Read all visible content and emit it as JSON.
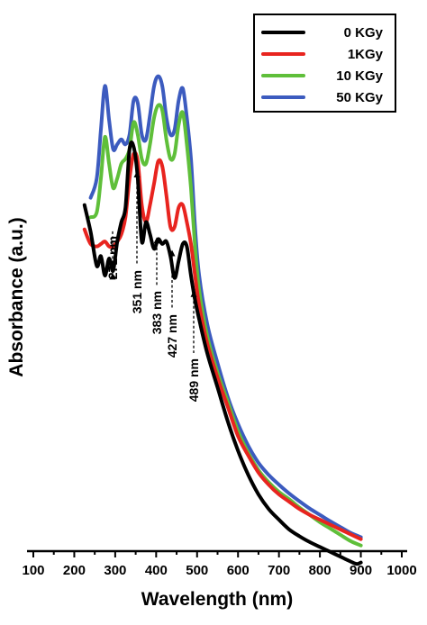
{
  "chart_data": {
    "type": "line",
    "xlabel": "Wavelength (nm)",
    "ylabel": "Absorbance (a.u.)",
    "xlim": [
      100,
      1000
    ],
    "ylim": [
      0,
      1.0
    ],
    "x_ticks": [
      100,
      200,
      300,
      400,
      500,
      600,
      700,
      800,
      900,
      1000
    ],
    "y_ticks_shown": false,
    "legend_position": "top-right",
    "series": [
      {
        "name": "0 KGy",
        "color": "#000000",
        "x": [
          225,
          240,
          255,
          265,
          275,
          285,
          295,
          305,
          315,
          325,
          335,
          345,
          355,
          365,
          375,
          385,
          395,
          405,
          415,
          425,
          435,
          445,
          455,
          465,
          475,
          485,
          495,
          505,
          525,
          550,
          575,
          600,
          625,
          650,
          675,
          700,
          725,
          750,
          775,
          800,
          825,
          850,
          875,
          890,
          900
        ],
        "y": [
          0.745,
          0.69,
          0.62,
          0.64,
          0.6,
          0.635,
          0.61,
          0.67,
          0.71,
          0.74,
          0.86,
          0.865,
          0.8,
          0.67,
          0.71,
          0.685,
          0.655,
          0.675,
          0.665,
          0.67,
          0.64,
          0.595,
          0.63,
          0.665,
          0.66,
          0.6,
          0.55,
          0.51,
          0.44,
          0.37,
          0.3,
          0.24,
          0.19,
          0.15,
          0.12,
          0.098,
          0.078,
          0.064,
          0.052,
          0.042,
          0.032,
          0.022,
          0.012,
          0.007,
          0.01
        ]
      },
      {
        "name": "1KGy",
        "color": "#e8241f",
        "x": [
          225,
          240,
          255,
          265,
          275,
          285,
          295,
          305,
          315,
          325,
          335,
          345,
          355,
          365,
          375,
          385,
          395,
          405,
          415,
          425,
          435,
          445,
          455,
          465,
          475,
          485,
          495,
          505,
          525,
          550,
          575,
          600,
          625,
          650,
          675,
          700,
          725,
          750,
          775,
          800,
          825,
          850,
          875,
          900
        ],
        "y": [
          0.695,
          0.665,
          0.66,
          0.665,
          0.67,
          0.66,
          0.66,
          0.67,
          0.685,
          0.72,
          0.8,
          0.85,
          0.835,
          0.745,
          0.71,
          0.745,
          0.79,
          0.835,
          0.825,
          0.765,
          0.7,
          0.7,
          0.74,
          0.745,
          0.71,
          0.665,
          0.6,
          0.54,
          0.46,
          0.39,
          0.33,
          0.27,
          0.23,
          0.195,
          0.17,
          0.15,
          0.135,
          0.12,
          0.108,
          0.098,
          0.088,
          0.078,
          0.068,
          0.058
        ]
      },
      {
        "name": "10 KGy",
        "color": "#5fbf3a",
        "x": [
          240,
          255,
          265,
          275,
          285,
          295,
          305,
          315,
          325,
          335,
          345,
          355,
          365,
          375,
          385,
          395,
          405,
          415,
          425,
          435,
          445,
          455,
          465,
          475,
          485,
          495,
          505,
          525,
          550,
          575,
          600,
          625,
          650,
          675,
          700,
          725,
          750,
          775,
          800,
          825,
          850,
          875,
          900
        ],
        "y": [
          0.72,
          0.73,
          0.8,
          0.885,
          0.83,
          0.78,
          0.8,
          0.83,
          0.84,
          0.86,
          0.915,
          0.89,
          0.84,
          0.83,
          0.87,
          0.925,
          0.95,
          0.94,
          0.88,
          0.84,
          0.85,
          0.91,
          0.935,
          0.87,
          0.78,
          0.66,
          0.57,
          0.475,
          0.4,
          0.34,
          0.28,
          0.235,
          0.2,
          0.175,
          0.155,
          0.14,
          0.123,
          0.108,
          0.093,
          0.08,
          0.067,
          0.054,
          0.045
        ]
      },
      {
        "name": "50 KGy",
        "color": "#3c5bbf",
        "x": [
          240,
          255,
          265,
          275,
          285,
          295,
          305,
          315,
          325,
          335,
          345,
          355,
          365,
          375,
          385,
          395,
          405,
          415,
          425,
          435,
          445,
          455,
          465,
          475,
          485,
          495,
          505,
          525,
          550,
          575,
          600,
          625,
          650,
          675,
          700,
          725,
          750,
          775,
          800,
          825,
          850,
          875,
          900
        ],
        "y": [
          0.76,
          0.8,
          0.9,
          0.99,
          0.92,
          0.86,
          0.87,
          0.88,
          0.87,
          0.89,
          0.96,
          0.955,
          0.89,
          0.88,
          0.93,
          0.99,
          1.01,
          0.99,
          0.925,
          0.89,
          0.9,
          0.96,
          0.985,
          0.925,
          0.84,
          0.7,
          0.6,
          0.5,
          0.42,
          0.35,
          0.295,
          0.25,
          0.215,
          0.19,
          0.17,
          0.152,
          0.136,
          0.121,
          0.108,
          0.095,
          0.083,
          0.071,
          0.062
        ]
      }
    ],
    "annotations": [
      {
        "label": "271 nm",
        "x": 271
      },
      {
        "label": "351 nm",
        "x": 351
      },
      {
        "label": "383 nm",
        "x": 383
      },
      {
        "label": "427 nm",
        "x": 427
      },
      {
        "label": "489 nm",
        "x": 489
      }
    ]
  }
}
